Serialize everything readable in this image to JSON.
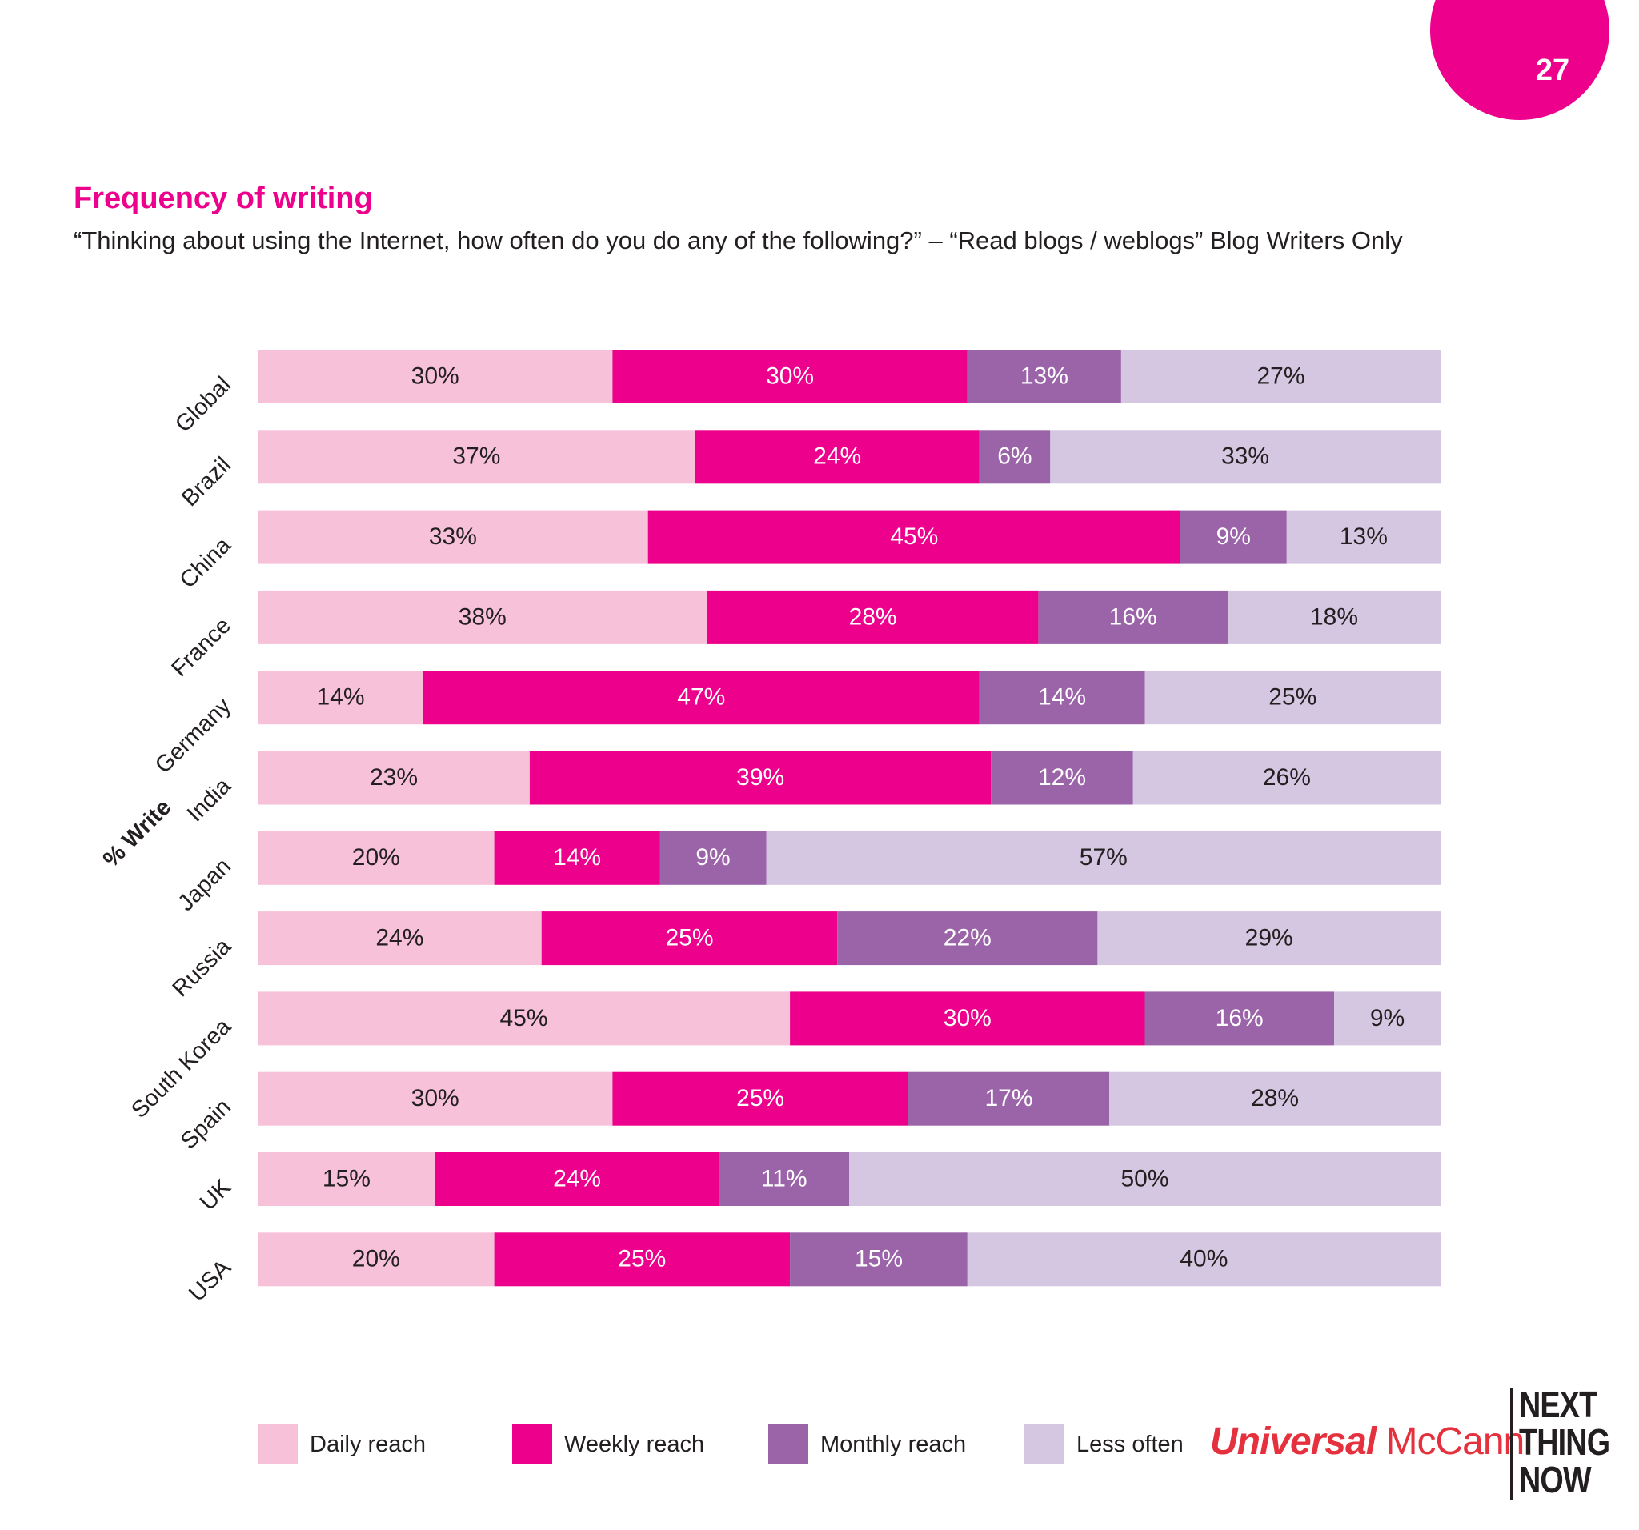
{
  "page": {
    "number": "27"
  },
  "header": {
    "title": "Frequency of writing",
    "subtitle": "“Thinking about using the Internet, how often do you do any of the following?” – “Read blogs / weblogs” Blog Writers Only"
  },
  "chart_data": {
    "type": "bar",
    "orientation": "horizontal",
    "stacked": true,
    "ylabel": "% Write",
    "xlabel": "",
    "xlim": [
      0,
      100
    ],
    "grid": false,
    "legend_position": "bottom",
    "categories": [
      "Global",
      "Brazil",
      "China",
      "France",
      "Germany",
      "India",
      "Japan",
      "Russia",
      "South Korea",
      "Spain",
      "UK",
      "USA"
    ],
    "series": [
      {
        "name": "Daily reach",
        "color": "#f7c1d9",
        "values": [
          30,
          37,
          33,
          38,
          14,
          23,
          20,
          24,
          45,
          30,
          15,
          20
        ],
        "labels": [
          "30%",
          "37%",
          "33%",
          "38%",
          "14%",
          "23%",
          "20%",
          "24%",
          "45%",
          "30%",
          "15%",
          "20%"
        ]
      },
      {
        "name": "Weekly reach",
        "color": "#ec008c",
        "values": [
          30,
          24,
          45,
          28,
          47,
          39,
          14,
          25,
          30,
          25,
          24,
          25
        ],
        "labels": [
          "30%",
          "24%",
          "45%",
          "28%",
          "47%",
          "39%",
          "14%",
          "25%",
          "30%",
          "25%",
          "24%",
          "25%"
        ]
      },
      {
        "name": "Monthly reach",
        "color": "#9b63a8",
        "values": [
          13,
          6,
          9,
          16,
          14,
          12,
          9,
          22,
          16,
          17,
          11,
          15
        ],
        "labels": [
          "13%",
          "6%",
          "9%",
          "16%",
          "14%",
          "12%",
          "9%",
          "22%",
          "16%",
          "17%",
          "11%",
          "15%"
        ]
      },
      {
        "name": "Less often",
        "color": "#d5c7e1",
        "values": [
          27,
          33,
          13,
          18,
          25,
          26,
          57,
          29,
          9,
          28,
          50,
          40
        ],
        "labels": [
          "27%",
          "33%",
          "13%",
          "18%",
          "25%",
          "26%",
          "57%",
          "29%",
          "9%",
          "28%",
          "50%",
          "40%"
        ]
      }
    ]
  },
  "logos": {
    "mccann_universal": "Universal",
    "mccann_name": "McCann",
    "ntn_line1": "NEXT",
    "ntn_line2": "THING",
    "ntn_line3": "NOW"
  }
}
